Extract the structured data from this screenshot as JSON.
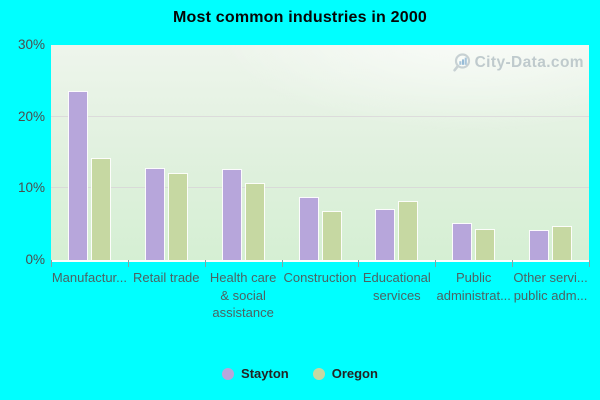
{
  "title": "Most common industries in 2000",
  "watermark": {
    "text": "City-Data.com",
    "icon": "magnifier-with-bars-icon"
  },
  "colors": {
    "background": "#00ffff",
    "stayton": "#b7a6db",
    "oregon": "#c6d8a2",
    "plot_top": "#eef5ec",
    "plot_bottom": "#d5efd3",
    "gridline": "#d6c8d6",
    "axis_text": "#4c4c4c",
    "category_text": "#4c6363"
  },
  "chart_data": {
    "type": "bar",
    "title": "Most common industries in 2000",
    "categories": [
      "Manufactur...",
      "Retail trade",
      "Health care & social assistance",
      "Construction",
      "Educational services",
      "Public administrat...",
      "Other servi... public adm..."
    ],
    "category_label_lines": [
      [
        "Manufactur..."
      ],
      [
        "Retail trade"
      ],
      [
        "Health care",
        "& social",
        "assistance"
      ],
      [
        "Construction"
      ],
      [
        "Educational",
        "services"
      ],
      [
        "Public",
        "administrat..."
      ],
      [
        "Other servi...",
        "public adm..."
      ]
    ],
    "series": [
      {
        "name": "Stayton",
        "color": "#b7a6db",
        "values": [
          23.6,
          12.8,
          12.7,
          8.8,
          7.1,
          5.1,
          4.2
        ]
      },
      {
        "name": "Oregon",
        "color": "#c6d8a2",
        "values": [
          14.3,
          12.2,
          10.7,
          6.8,
          8.3,
          4.3,
          4.8
        ]
      }
    ],
    "ylabel": "",
    "xlabel": "",
    "ylim": [
      0,
      30
    ],
    "yticks": [
      {
        "label": "30%",
        "value": 30
      },
      {
        "label": "20%",
        "value": 20
      },
      {
        "label": "10%",
        "value": 10
      },
      {
        "label": "0%",
        "value": 0
      }
    ],
    "gridline_values": [
      10,
      20
    ],
    "grid": true,
    "legend_position": "bottom-center"
  }
}
